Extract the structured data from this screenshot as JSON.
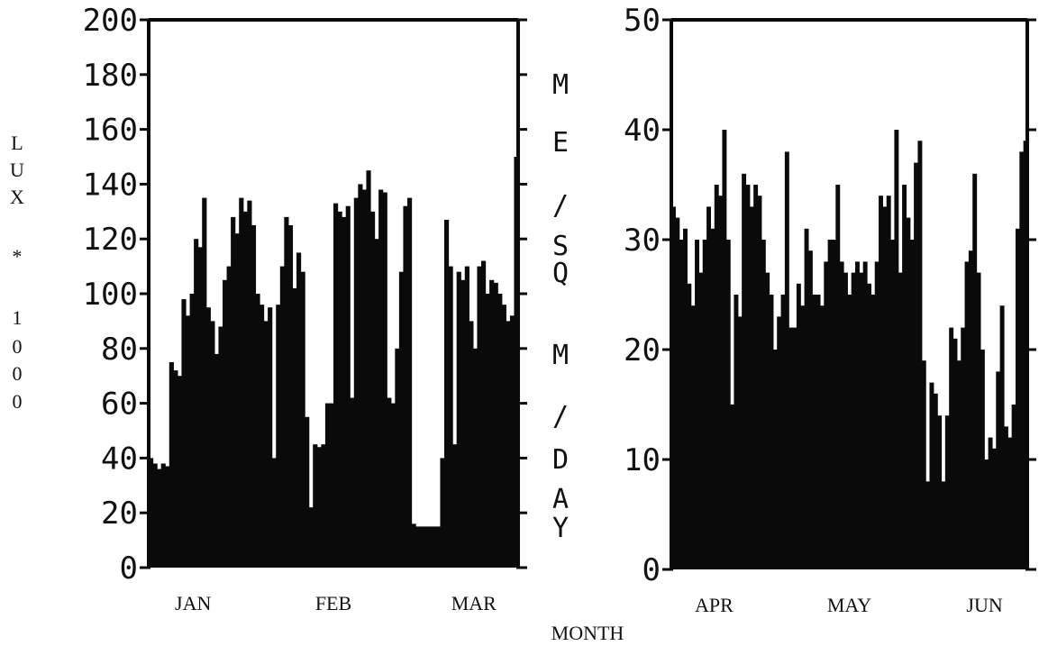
{
  "chart_data": [
    {
      "type": "bar",
      "ylabel": "LUX * 1000",
      "xlabel": "MONTH",
      "ylim": [
        0,
        200
      ],
      "yticks": [
        "200",
        "180",
        "160",
        "140",
        "120",
        "100",
        "80",
        "60",
        "40",
        "20",
        "0"
      ],
      "months": [
        "JAN",
        "FEB",
        "MAR"
      ],
      "x_day_range": [
        1,
        90
      ],
      "series": [
        {
          "values": [
            40,
            38,
            36,
            38,
            37,
            75,
            72,
            70,
            98,
            92,
            100,
            120,
            117,
            135,
            95,
            90,
            78,
            88,
            105,
            110,
            128,
            122,
            135,
            130,
            134,
            125,
            100,
            96,
            90,
            95,
            40,
            96,
            110,
            128,
            125,
            102,
            115,
            108,
            55,
            22,
            45,
            44,
            45,
            60,
            60,
            133,
            130,
            128,
            132,
            62,
            135,
            140,
            138,
            145,
            130,
            120,
            138,
            137,
            62,
            60,
            80,
            108,
            132,
            135,
            16,
            15,
            15,
            15,
            15,
            15,
            15,
            40,
            127,
            110,
            45,
            108,
            105,
            110,
            90,
            80,
            110,
            112,
            100,
            105,
            104,
            100,
            96,
            90,
            92,
            150
          ],
          "labels_by_month": {
            "JAN": "JAN",
            "FEB": "FEB",
            "MAR": "MAR"
          }
        }
      ],
      "grid": false,
      "legend": "none"
    },
    {
      "type": "bar",
      "ylabel": "ME/SQM/DAY",
      "xlabel": "MONTH",
      "ylim": [
        0,
        50
      ],
      "yticks": [
        "50",
        "40",
        "30",
        "20",
        "10",
        "0"
      ],
      "months": [
        "APR",
        "MAY",
        "JUN"
      ],
      "x_day_range": [
        1,
        91
      ],
      "series": [
        {
          "values": [
            33,
            32,
            30,
            31,
            26,
            24,
            30,
            27,
            30,
            33,
            31,
            35,
            34,
            40,
            30,
            15,
            25,
            23,
            36,
            35,
            33,
            35,
            34,
            30,
            27,
            25,
            20,
            23,
            25,
            38,
            22,
            22,
            26,
            24,
            31,
            29,
            25,
            25,
            24,
            28,
            30,
            30,
            35,
            28,
            27,
            25,
            27,
            28,
            27,
            28,
            26,
            25,
            28,
            34,
            33,
            34,
            30,
            40,
            27,
            35,
            32,
            30,
            37,
            39,
            19,
            8,
            17,
            16,
            14,
            8,
            14,
            22,
            21,
            19,
            22,
            28,
            29,
            36,
            27,
            20,
            10,
            12,
            11,
            18,
            24,
            13,
            12,
            15,
            31,
            38,
            39
          ],
          "labels_by_month": {
            "APR": "APR",
            "MAY": "MAY",
            "JUN": "JUN"
          }
        }
      ],
      "grid": false,
      "legend": "none"
    }
  ],
  "axis_titles": {
    "left_chars": [
      "L",
      "U",
      "X",
      "*",
      "1",
      "0",
      "0",
      "0"
    ],
    "middle_chars": [
      "M",
      "E",
      "/",
      "S",
      "Q",
      "M",
      "/",
      "D",
      "A",
      "Y"
    ],
    "bottom": "MONTH"
  },
  "colors": {
    "bars": "#0a0a0a",
    "frame": "#0a0a0a",
    "background": "#ffffff"
  }
}
